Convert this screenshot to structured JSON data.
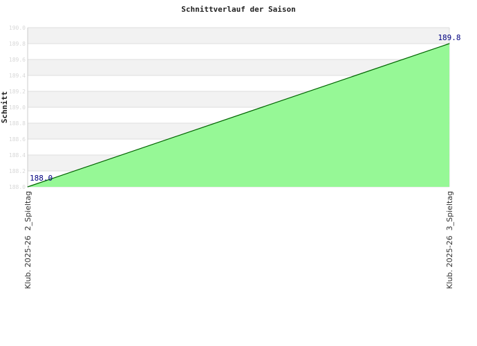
{
  "chart_data": {
    "type": "area",
    "title": "Schnittverlauf der Saison",
    "ylabel": "Schnitt",
    "xlabel": "",
    "categories": [
      "Klub. 2025-26  2_Spieltag",
      "Klub. 2025-26  3_Spieltag"
    ],
    "values": [
      188.0,
      189.8
    ],
    "data_labels": [
      "188.0",
      "189.8"
    ],
    "ylim": [
      188.0,
      190.0
    ],
    "yticks": [
      "188.0",
      "188.2",
      "188.4",
      "188.6",
      "188.8",
      "189.0",
      "189.2",
      "189.4",
      "189.6",
      "189.8",
      "190.0"
    ],
    "grid": true,
    "legend": "none",
    "colors": {
      "fill": "#90f890",
      "line": "#006400",
      "label": "#000080",
      "band": "#f2f2f2",
      "tick": "#d8d8d8"
    }
  }
}
